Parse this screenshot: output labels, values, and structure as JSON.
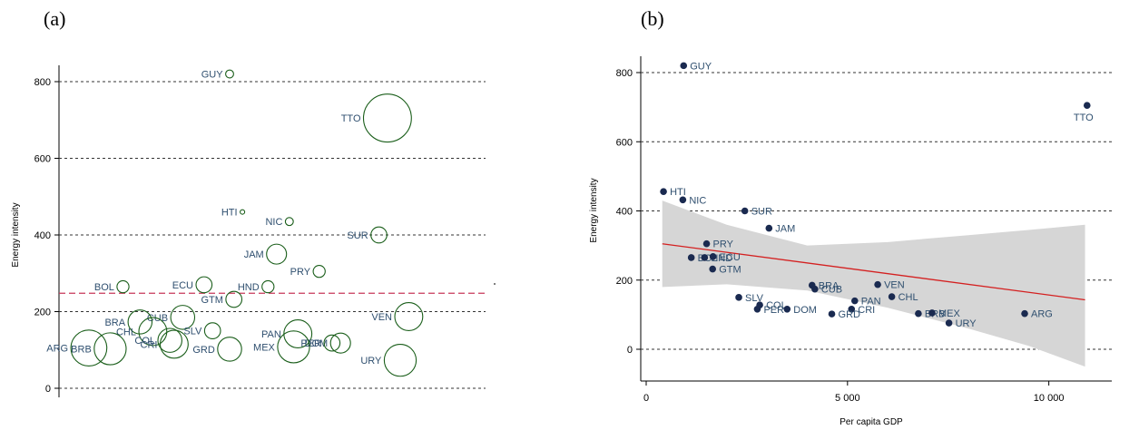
{
  "colors": {
    "bubble": "#1a5e1a",
    "mean_line": "#c8385a",
    "dot": "#1a2a50",
    "country_label": "#2f4f6f",
    "fit_line": "#d42020",
    "ci_band": "#d6d6d6",
    "grid": "#333333",
    "text": "#000000"
  },
  "chart_data": [
    {
      "panel": "(a)",
      "type": "scatter",
      "ylabel": "Energy intensity",
      "ylim": [
        0,
        800
      ],
      "yticks": [
        0,
        200,
        400,
        600,
        800
      ],
      "grid": "horizontal dashed",
      "mean_line": 248,
      "points": [
        {
          "label": "GUY",
          "x": 0.4,
          "y": 820,
          "size": 2
        },
        {
          "label": "TTO",
          "x": 0.77,
          "y": 705,
          "size": 12
        },
        {
          "label": "HTI",
          "x": 0.43,
          "y": 460,
          "size": 1
        },
        {
          "label": "NIC",
          "x": 0.54,
          "y": 435,
          "size": 2
        },
        {
          "label": "SUR",
          "x": 0.75,
          "y": 400,
          "size": 4
        },
        {
          "label": "JAM",
          "x": 0.51,
          "y": 350,
          "size": 5
        },
        {
          "label": "PRY",
          "x": 0.61,
          "y": 305,
          "size": 3
        },
        {
          "label": "BOL",
          "x": 0.15,
          "y": 265,
          "size": 3
        },
        {
          "label": "ECU",
          "x": 0.34,
          "y": 270,
          "size": 4
        },
        {
          "label": "HND",
          "x": 0.49,
          "y": 265,
          "size": 3
        },
        {
          "label": "GTM",
          "x": 0.41,
          "y": 232,
          "size": 4
        },
        {
          "label": "CUB",
          "x": 0.29,
          "y": 185,
          "size": 6
        },
        {
          "label": "VEN",
          "x": 0.82,
          "y": 187,
          "size": 7
        },
        {
          "label": "BRA",
          "x": 0.19,
          "y": 173,
          "size": 6
        },
        {
          "label": "CHL",
          "x": 0.22,
          "y": 148,
          "size": 7
        },
        {
          "label": "SLV",
          "x": 0.36,
          "y": 150,
          "size": 4
        },
        {
          "label": "PAN",
          "x": 0.56,
          "y": 142,
          "size": 7
        },
        {
          "label": "COL",
          "x": 0.26,
          "y": 125,
          "size": 6
        },
        {
          "label": "CRI",
          "x": 0.27,
          "y": 115,
          "size": 7
        },
        {
          "label": "DOM",
          "x": 0.66,
          "y": 118,
          "size": 5
        },
        {
          "label": "PER",
          "x": 0.64,
          "y": 118,
          "size": 4
        },
        {
          "label": "GRD",
          "x": 0.4,
          "y": 102,
          "size": 6
        },
        {
          "label": "MEX",
          "x": 0.55,
          "y": 108,
          "size": 8
        },
        {
          "label": "BRB",
          "x": 0.12,
          "y": 103,
          "size": 8
        },
        {
          "label": "ARG",
          "x": 0.07,
          "y": 105,
          "size": 9
        },
        {
          "label": "URY",
          "x": 0.8,
          "y": 73,
          "size": 8
        }
      ]
    },
    {
      "panel": "(b)",
      "type": "scatter",
      "xlabel": "Per capita GDP",
      "ylabel": "Energy intensity",
      "xlim": [
        0,
        11000
      ],
      "ylim": [
        0,
        800
      ],
      "xticks": [
        0,
        5000,
        10000
      ],
      "xtick_labels": [
        "0",
        "5 000",
        "10 000"
      ],
      "yticks": [
        0,
        200,
        400,
        600,
        800
      ],
      "grid": "horizontal dashed",
      "fit": {
        "x": [
          400,
          10900
        ],
        "y": [
          305,
          143
        ]
      },
      "ci": {
        "x": [
          400,
          2000,
          4000,
          6000,
          8000,
          9500,
          10900
        ],
        "lower": [
          180,
          188,
          170,
          120,
          60,
          10,
          -50
        ],
        "upper": [
          430,
          360,
          300,
          310,
          330,
          345,
          360
        ]
      },
      "points": [
        {
          "label": "GUY",
          "x": 930,
          "y": 820
        },
        {
          "label": "TTO",
          "x": 10950,
          "y": 705
        },
        {
          "label": "HTI",
          "x": 430,
          "y": 456
        },
        {
          "label": "NIC",
          "x": 910,
          "y": 432
        },
        {
          "label": "SUR",
          "x": 2450,
          "y": 400
        },
        {
          "label": "JAM",
          "x": 3050,
          "y": 350
        },
        {
          "label": "PRY",
          "x": 1500,
          "y": 305
        },
        {
          "label": "BOL",
          "x": 1120,
          "y": 265
        },
        {
          "label": "HND",
          "x": 1450,
          "y": 265
        },
        {
          "label": "ECU",
          "x": 1660,
          "y": 268
        },
        {
          "label": "GTM",
          "x": 1650,
          "y": 232
        },
        {
          "label": "BRA",
          "x": 4120,
          "y": 185
        },
        {
          "label": "CUB",
          "x": 4190,
          "y": 174
        },
        {
          "label": "VEN",
          "x": 5750,
          "y": 187
        },
        {
          "label": "CHL",
          "x": 6100,
          "y": 152
        },
        {
          "label": "SLV",
          "x": 2300,
          "y": 150
        },
        {
          "label": "PAN",
          "x": 5180,
          "y": 140
        },
        {
          "label": "COL",
          "x": 2820,
          "y": 128
        },
        {
          "label": "PER",
          "x": 2760,
          "y": 116
        },
        {
          "label": "DOM",
          "x": 3500,
          "y": 116
        },
        {
          "label": "CRI",
          "x": 5100,
          "y": 116
        },
        {
          "label": "GRD",
          "x": 4610,
          "y": 102
        },
        {
          "label": "BRB",
          "x": 6760,
          "y": 103
        },
        {
          "label": "MEX",
          "x": 7100,
          "y": 105
        },
        {
          "label": "URY",
          "x": 7520,
          "y": 76
        },
        {
          "label": "ARG",
          "x": 9400,
          "y": 103
        }
      ]
    }
  ]
}
